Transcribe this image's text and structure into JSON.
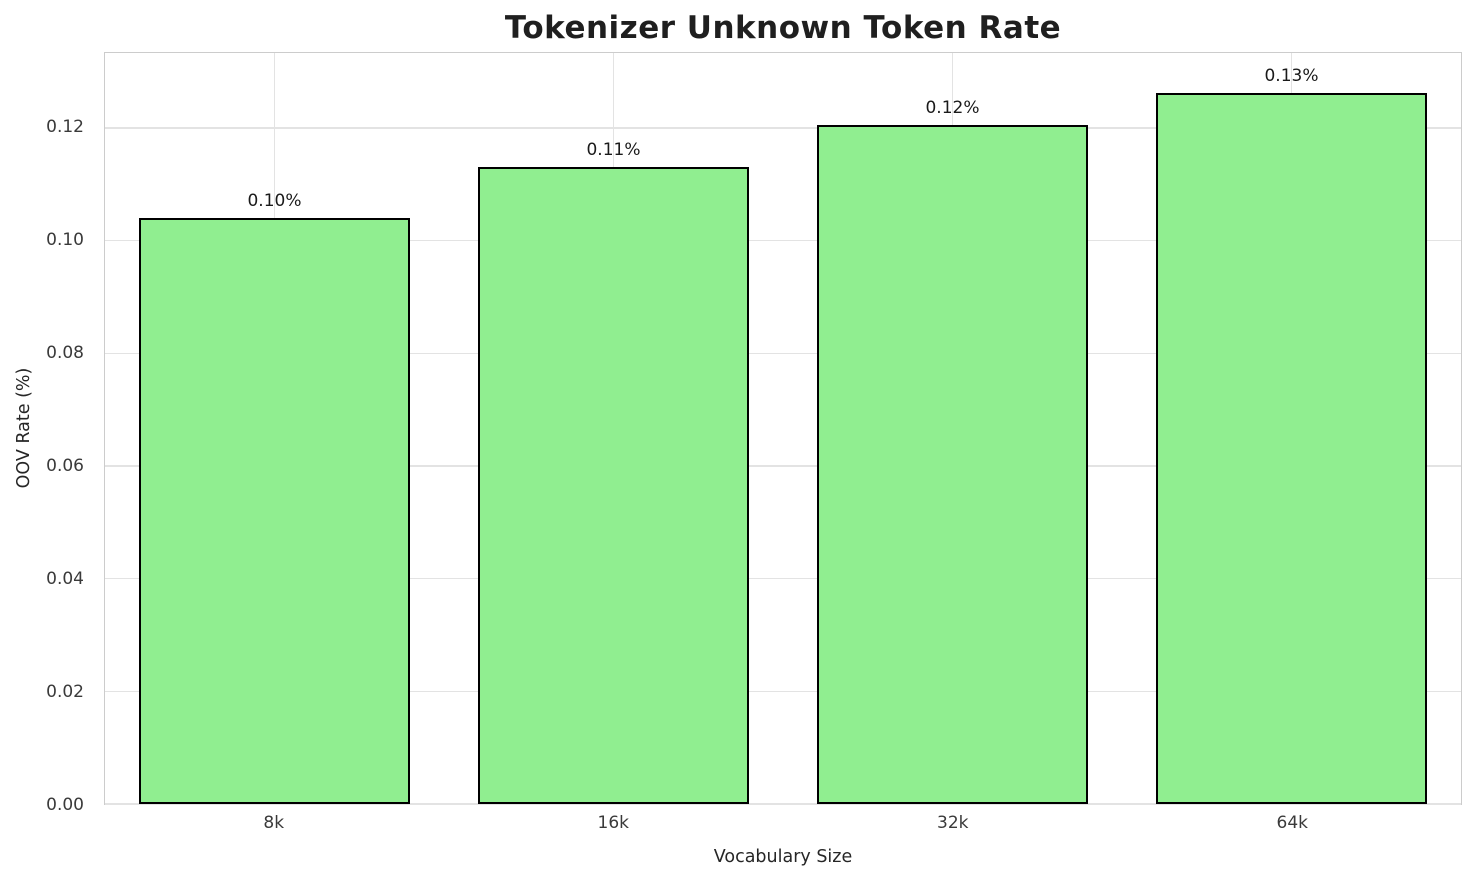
{
  "chart_data": {
    "type": "bar",
    "title": "Tokenizer Unknown Token Rate",
    "xlabel": "Vocabulary Size",
    "ylabel": "OOV Rate (%)",
    "categories": [
      "8k",
      "16k",
      "32k",
      "64k"
    ],
    "values": [
      0.104,
      0.113,
      0.1205,
      0.1262
    ],
    "bar_labels": [
      "0.10%",
      "0.11%",
      "0.12%",
      "0.13%"
    ],
    "yticks": [
      0.0,
      0.02,
      0.04,
      0.06,
      0.08,
      0.1,
      0.12
    ],
    "ytick_labels": [
      "0.00",
      "0.02",
      "0.04",
      "0.06",
      "0.08",
      "0.10",
      "0.12"
    ],
    "ylim": [
      0,
      0.1333
    ],
    "grid": true,
    "legend": "none",
    "bar_color": "#90EE90",
    "bar_edge_color": "#000000",
    "grid_color": "#e3e3e3",
    "spine_color": "#cccccc",
    "text_color": "#262626"
  }
}
